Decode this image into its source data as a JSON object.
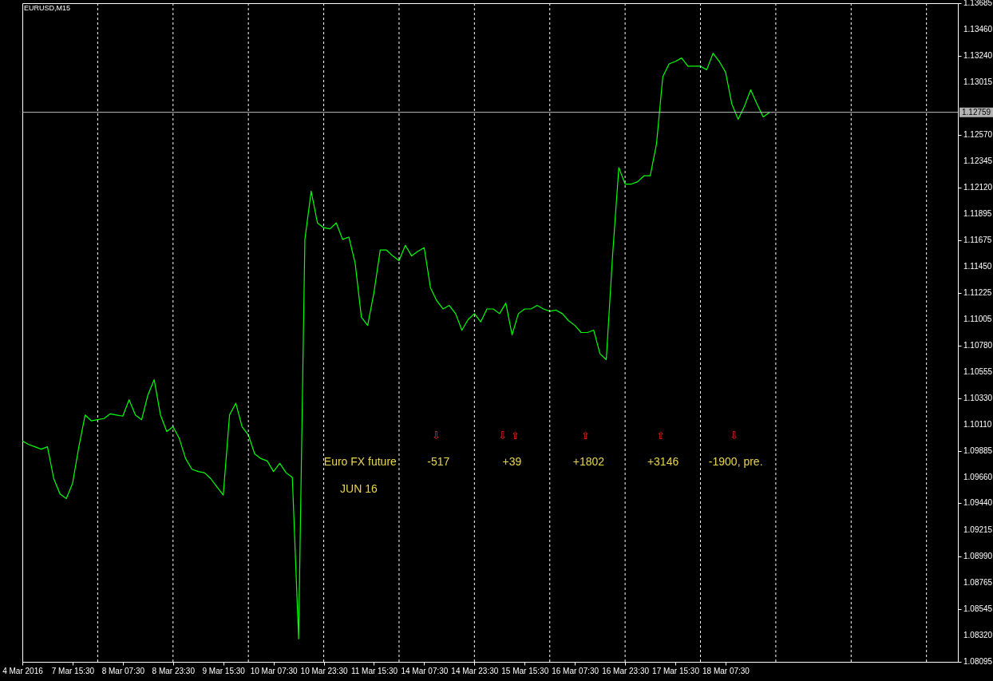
{
  "chart_data": {
    "type": "line",
    "title": "EURUSD,M15",
    "categories": [
      "4 Mar 2016",
      null,
      null,
      null,
      null,
      null,
      null,
      null,
      "7 Mar 15:30",
      null,
      null,
      null,
      null,
      null,
      null,
      null,
      "8 Mar 07:30",
      null,
      null,
      null,
      null,
      null,
      null,
      null,
      "8 Mar 23:30",
      null,
      null,
      null,
      null,
      null,
      null,
      null,
      "9 Mar 15:30",
      null,
      null,
      null,
      null,
      null,
      null,
      null,
      "10 Mar 07:30",
      null,
      null,
      null,
      null,
      null,
      null,
      null,
      "10 Mar 23:30",
      null,
      null,
      null,
      null,
      null,
      null,
      null,
      "11 Mar 15:30",
      null,
      null,
      null,
      null,
      null,
      null,
      null,
      "14 Mar 07:30",
      null,
      null,
      null,
      null,
      null,
      null,
      null,
      "14 Mar 23:30",
      null,
      null,
      null,
      null,
      null,
      null,
      null,
      "15 Mar 15:30",
      null,
      null,
      null,
      null,
      null,
      null,
      null,
      "16 Mar 07:30",
      null,
      null,
      null,
      null,
      null,
      null,
      null,
      "16 Mar 23:30",
      null,
      null,
      null,
      null,
      null,
      null,
      null,
      "17 Mar 15:30",
      null,
      null,
      null,
      null,
      null,
      null,
      null,
      "18 Mar 07:30",
      null,
      null,
      null,
      null,
      null,
      null,
      null,
      null,
      null,
      null,
      null,
      null,
      null,
      null,
      null,
      null,
      null,
      null,
      null,
      null,
      null,
      null,
      null,
      null,
      null,
      null,
      null,
      null,
      null,
      null,
      null,
      null,
      null,
      null,
      null,
      null,
      null
    ],
    "series": [
      {
        "color": "#00ff00",
        "values": [
          1.0997,
          1.0994,
          1.0992,
          1.099,
          1.0992,
          1.0965,
          1.0952,
          1.0948,
          1.0961,
          1.0992,
          1.1019,
          1.1014,
          1.1015,
          1.1016,
          1.102,
          1.1019,
          1.1018,
          1.1032,
          1.1019,
          1.1015,
          1.1036,
          1.1049,
          1.1019,
          1.1005,
          1.1009,
          1.0999,
          1.0982,
          1.0973,
          1.0971,
          1.097,
          1.0965,
          1.0958,
          1.0951,
          1.1019,
          1.1029,
          1.1009,
          1.1002,
          1.0986,
          1.0982,
          1.098,
          1.0971,
          1.0978,
          1.097,
          1.0966,
          1.0829,
          1.1168,
          1.1209,
          1.1182,
          1.1178,
          1.1177,
          1.1182,
          1.1168,
          1.117,
          1.1148,
          1.1102,
          1.1095,
          1.1123,
          1.1159,
          1.1159,
          1.1154,
          1.115,
          1.1163,
          1.1154,
          1.1158,
          1.1161,
          1.1127,
          1.1116,
          1.1109,
          1.1112,
          1.1105,
          1.1091,
          1.11,
          1.1105,
          1.1098,
          1.1109,
          1.1109,
          1.1105,
          1.1114,
          1.1087,
          1.1105,
          1.1109,
          1.1109,
          1.1112,
          1.1109,
          1.1107,
          1.1108,
          1.1105,
          1.1099,
          1.1095,
          1.1089,
          1.1089,
          1.1091,
          1.1071,
          1.1066,
          1.1154,
          1.1229,
          1.1215,
          1.1215,
          1.1217,
          1.1222,
          1.1222,
          1.1249,
          1.1306,
          1.1317,
          1.1319,
          1.1322,
          1.1315,
          1.1315,
          1.1315,
          1.1312,
          1.1326,
          1.1319,
          1.131,
          1.1283,
          1.127,
          1.1281,
          1.1295,
          1.1283,
          1.1272,
          1.12759,
          null,
          null,
          null,
          null,
          null,
          null,
          null,
          null,
          null,
          null,
          null,
          null,
          null,
          null,
          null,
          null,
          null,
          null,
          null,
          null,
          null,
          null,
          null,
          null,
          null,
          null,
          null,
          null,
          null,
          null
        ]
      }
    ],
    "ylim": [
      1.08095,
      1.13685
    ],
    "yticks": [
      1.13685,
      {
        "value": 1.1346,
        "label": "1.13460"
      },
      {
        "value": 1.1324,
        "label": "1.13240"
      },
      1.13015,
      {
        "value": 1.1257,
        "label": "1.12570"
      },
      1.12345,
      {
        "value": 1.1212,
        "label": "1.12120"
      },
      1.11895,
      1.11675,
      {
        "value": 1.1145,
        "label": "1.11450"
      },
      1.11225,
      1.11005,
      {
        "value": 1.1078,
        "label": "1.10780"
      },
      1.10555,
      {
        "value": 1.1033,
        "label": "1.10330"
      },
      {
        "value": 1.1011,
        "label": "1.10110"
      },
      1.09885,
      {
        "value": 1.0966,
        "label": "1.09660"
      },
      {
        "value": 1.0944,
        "label": "1.09440"
      },
      1.09215,
      {
        "value": 1.0899,
        "label": "1.08990"
      },
      1.08765,
      1.08545,
      {
        "value": 1.0832,
        "label": "1.08320"
      },
      1.08095
    ],
    "ref_lines": [
      {
        "axis": "y",
        "value": 1.12759,
        "label": "1.12759",
        "color": "#c0c0c0"
      }
    ],
    "annotations": [
      "Euro FX future",
      "JUN 16",
      "-517",
      "+39",
      "+1802",
      "+3146",
      "-1900, pre.",
      "⇩",
      "⇩",
      "⇧",
      "⇧",
      "⇧",
      "⇩"
    ],
    "grid": "x",
    "marker": "none",
    "line_style": "solid"
  }
}
